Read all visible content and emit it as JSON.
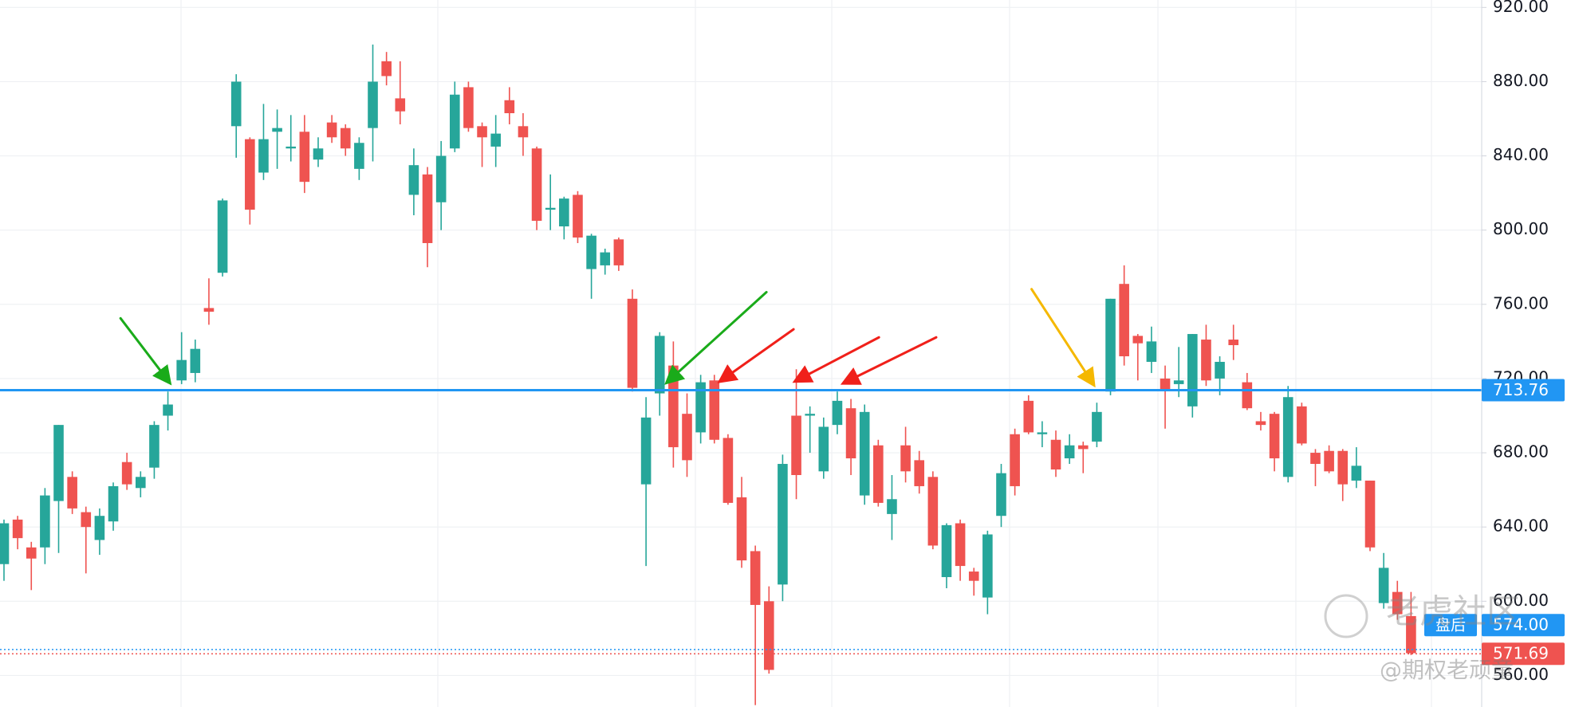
{
  "chart_data": {
    "type": "candlestick",
    "open": [
      620,
      644,
      629,
      629,
      654,
      667,
      648,
      633,
      643,
      675,
      661,
      672,
      700,
      719,
      723,
      758,
      777,
      856,
      849,
      831,
      853,
      844,
      853,
      838,
      858,
      855,
      833,
      855,
      891,
      871,
      819,
      830,
      815,
      844,
      877,
      856,
      845,
      870,
      856,
      844,
      811,
      802,
      819,
      779,
      781,
      795,
      763,
      663,
      712,
      727,
      701,
      691,
      719,
      688,
      656,
      627,
      600,
      609,
      700,
      700,
      670,
      695,
      704,
      657,
      684,
      647,
      684,
      676,
      667,
      613,
      642,
      616,
      602,
      646,
      690,
      708,
      690,
      687,
      677,
      684,
      686,
      713,
      771,
      743,
      729,
      720,
      717,
      705,
      741,
      720,
      741,
      718,
      697,
      701,
      667,
      705,
      680,
      681,
      681,
      665,
      665,
      599,
      605,
      592
    ],
    "high": [
      644,
      646,
      632,
      661,
      695,
      670,
      651,
      650,
      664,
      680,
      670,
      697,
      713,
      745,
      741,
      774,
      817,
      884,
      850,
      868,
      865,
      862,
      862,
      850,
      862,
      857,
      850,
      900,
      896,
      891,
      844,
      834,
      848,
      880,
      880,
      858,
      862,
      877,
      863,
      845,
      830,
      818,
      821,
      798,
      790,
      796,
      768,
      710,
      745,
      740,
      712,
      722,
      722,
      690,
      667,
      630,
      608,
      679,
      725,
      705,
      699,
      713,
      709,
      706,
      687,
      668,
      694,
      681,
      670,
      642,
      644,
      618,
      638,
      674,
      693,
      711,
      697,
      692,
      690,
      686,
      707,
      763,
      781,
      744,
      748,
      727,
      737,
      744,
      749,
      732,
      749,
      723,
      702,
      702,
      716,
      707,
      682,
      684,
      682,
      683,
      665,
      626,
      611,
      605
    ],
    "low": [
      611,
      628,
      606,
      620,
      626,
      647,
      615,
      625,
      638,
      660,
      656,
      666,
      692,
      717,
      718,
      749,
      775,
      839,
      803,
      827,
      833,
      837,
      820,
      834,
      847,
      840,
      827,
      837,
      878,
      857,
      808,
      780,
      800,
      842,
      853,
      834,
      834,
      857,
      840,
      800,
      800,
      795,
      793,
      763,
      776,
      778,
      713,
      619,
      700,
      672,
      667,
      685,
      685,
      652,
      618,
      544,
      561,
      600,
      655,
      680,
      666,
      690,
      668,
      652,
      651,
      633,
      664,
      658,
      628,
      607,
      611,
      603,
      593,
      640,
      657,
      690,
      683,
      667,
      674,
      669,
      683,
      711,
      727,
      719,
      723,
      693,
      710,
      699,
      716,
      711,
      730,
      703,
      692,
      670,
      664,
      684,
      662,
      669,
      654,
      661,
      627,
      596,
      590,
      571
    ],
    "close": [
      642,
      634,
      623,
      657,
      695,
      650,
      640,
      646,
      662,
      663,
      667,
      695,
      706,
      730,
      736,
      756,
      816,
      880,
      811,
      849,
      855,
      845,
      826,
      844,
      850,
      844,
      847,
      880,
      883,
      864,
      835,
      793,
      840,
      873,
      855,
      850,
      852,
      863,
      850,
      805,
      812,
      817,
      796,
      797,
      788,
      781,
      715,
      699,
      743,
      683,
      676,
      718,
      687,
      653,
      622,
      598,
      563,
      674,
      668,
      701,
      694,
      708,
      677,
      702,
      653,
      655,
      670,
      662,
      630,
      641,
      619,
      611,
      636,
      669,
      662,
      691,
      691,
      671,
      684,
      682,
      702,
      763,
      732,
      739,
      740,
      714,
      719,
      744,
      719,
      729,
      738,
      704,
      695,
      677,
      710,
      685,
      674,
      670,
      663,
      673,
      629,
      618,
      593,
      572
    ],
    "up_color": "#26a69a",
    "down_color": "#ef5350",
    "ylim": [
      543,
      924
    ],
    "yticks": [
      {
        "value": 920,
        "label": "920.00"
      },
      {
        "value": 880,
        "label": "880.00"
      },
      {
        "value": 840,
        "label": "840.00"
      },
      {
        "value": 800,
        "label": "800.00"
      },
      {
        "value": 760,
        "label": "760.00"
      },
      {
        "value": 720,
        "label": "720.00"
      },
      {
        "value": 680,
        "label": "680.00"
      },
      {
        "value": 640,
        "label": "640.00"
      },
      {
        "value": 600,
        "label": "600.00"
      },
      {
        "value": 560,
        "label": "560.00"
      }
    ],
    "grid": true,
    "level_line": {
      "value": 713.76,
      "color": "#2196f3"
    },
    "after_hours": {
      "tag": "盘后",
      "price": {
        "value": 574,
        "label": "574.00"
      },
      "color": "#2196f3"
    },
    "last_price": {
      "value": 571.69,
      "color": "#ef5350"
    },
    "watermark": {
      "logo": "老虎社区",
      "author": "@期权老顽童"
    }
  }
}
